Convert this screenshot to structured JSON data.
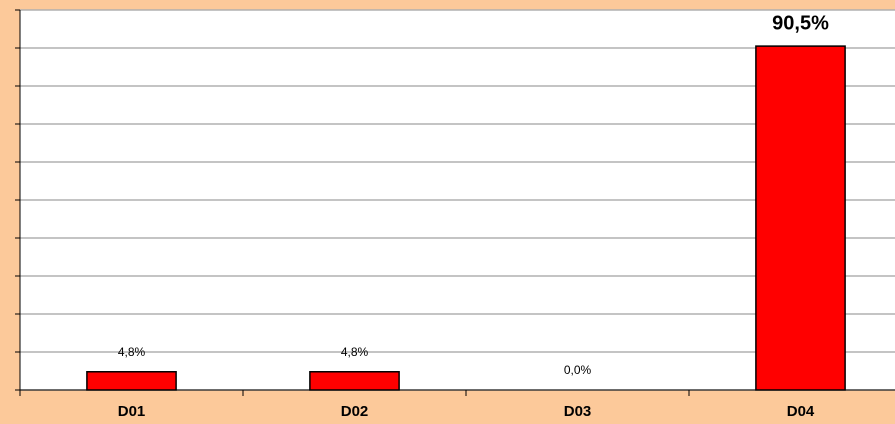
{
  "chart_data": {
    "type": "bar",
    "categories": [
      "D01",
      "D02",
      "D03",
      "D04"
    ],
    "values": [
      4.8,
      4.8,
      0.0,
      90.5
    ],
    "value_labels": [
      "4,8%",
      "4,8%",
      "0,0%",
      "90,5%"
    ],
    "color": "#ff0000",
    "ylim": [
      0,
      100
    ],
    "yticks": [
      0,
      10,
      20,
      30,
      40,
      50,
      60,
      70,
      80,
      90,
      100
    ],
    "grid": true
  }
}
